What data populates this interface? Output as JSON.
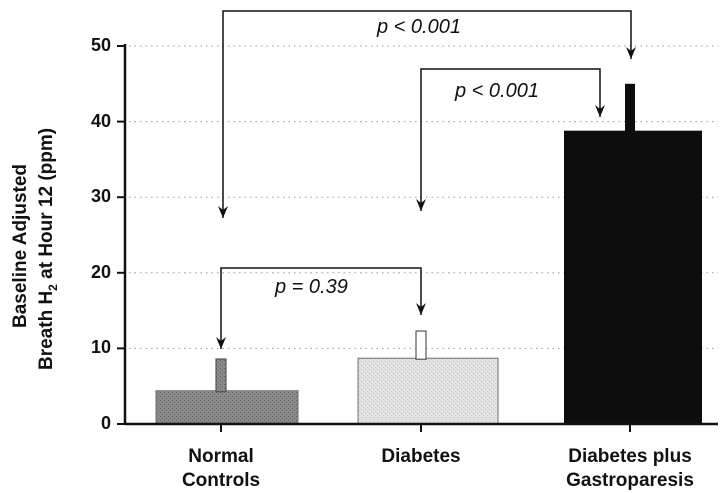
{
  "chart_data": {
    "type": "bar",
    "ylabel_line1": "Baseline Adjusted",
    "ylabel_line2_pre": "Breath H",
    "ylabel_line2_sub": "2",
    "ylabel_line2_post": " at Hour 12 (ppm)",
    "ylim": [
      0,
      50
    ],
    "yticks": [
      "0",
      "10",
      "20",
      "30",
      "40",
      "50"
    ],
    "grid": true,
    "categories": [
      {
        "line1": "Normal",
        "line2": "Controls"
      },
      {
        "line1": "Diabetes",
        "line2": ""
      },
      {
        "line1": "Diabetes plus",
        "line2": "Gastroparesis"
      }
    ],
    "values": [
      4.4,
      8.7,
      38.8
    ],
    "error_upper": [
      8.6,
      12.3,
      45.0
    ],
    "bar_colors": [
      "#8a8a8a",
      "#dedede",
      "#0d0d0d"
    ],
    "error_colors": [
      "#8a8a8a",
      "#dedede",
      "#0d0d0d"
    ],
    "annotations": [
      {
        "text": "p < 0.001",
        "from": 0,
        "to": 2
      },
      {
        "text": "p < 0.001",
        "from": 1,
        "to": 2
      },
      {
        "text": "p = 0.39",
        "from": 0,
        "to": 1
      }
    ]
  }
}
